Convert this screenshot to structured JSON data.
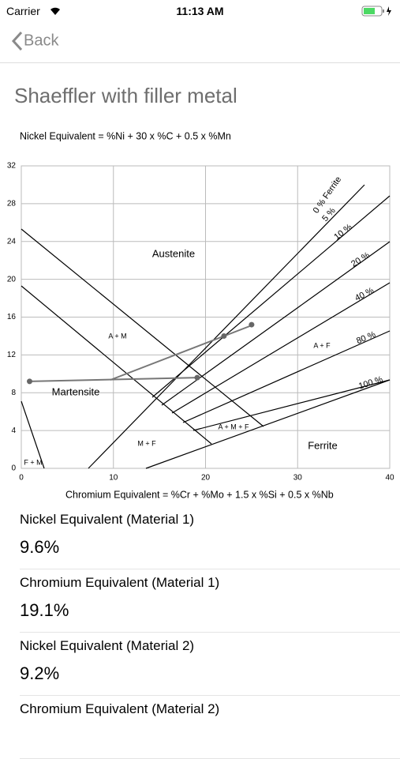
{
  "status_bar": {
    "carrier": "Carrier",
    "time": "11:13 AM"
  },
  "nav": {
    "back": "Back"
  },
  "title": "Shaeffler with filler metal",
  "chart": {
    "y_label": "Nickel Equivalent = %Ni + 30 x %C + 0.5 x %Mn",
    "x_label": "Chromium Equivalent = %Cr + %Mo + 1.5 x %Si + 0.5 x %Nb",
    "xlim": [
      0,
      40
    ],
    "xticks": [
      0,
      10,
      20,
      30,
      40
    ],
    "ylim": [
      0,
      32
    ],
    "yticks": [
      0,
      4,
      8,
      12,
      16,
      20,
      24,
      28,
      32
    ],
    "grid": true,
    "regions": [
      "Austenite",
      "Martensite",
      "Ferrite",
      "A + M",
      "A + F",
      "M + F",
      "A + M + F",
      "F + M"
    ],
    "ferrite_lines": [
      "0 % Ferrite",
      "5 %",
      "10 %",
      "20 %",
      "40 %",
      "80 %",
      "100 %"
    ],
    "points": {
      "x": [
        0.9,
        19.1,
        22,
        25
      ],
      "y": [
        9.2,
        9.6,
        14,
        15.2
      ]
    }
  },
  "results": [
    {
      "label": "Nickel Equivalent (Material 1)",
      "value": "9.6%"
    },
    {
      "label": "Chromium Equivalent (Material 1)",
      "value": "19.1%"
    },
    {
      "label": "Nickel Equivalent (Material 2)",
      "value": "9.2%"
    },
    {
      "label": "Chromium Equivalent (Material 2)",
      "value": ""
    }
  ]
}
